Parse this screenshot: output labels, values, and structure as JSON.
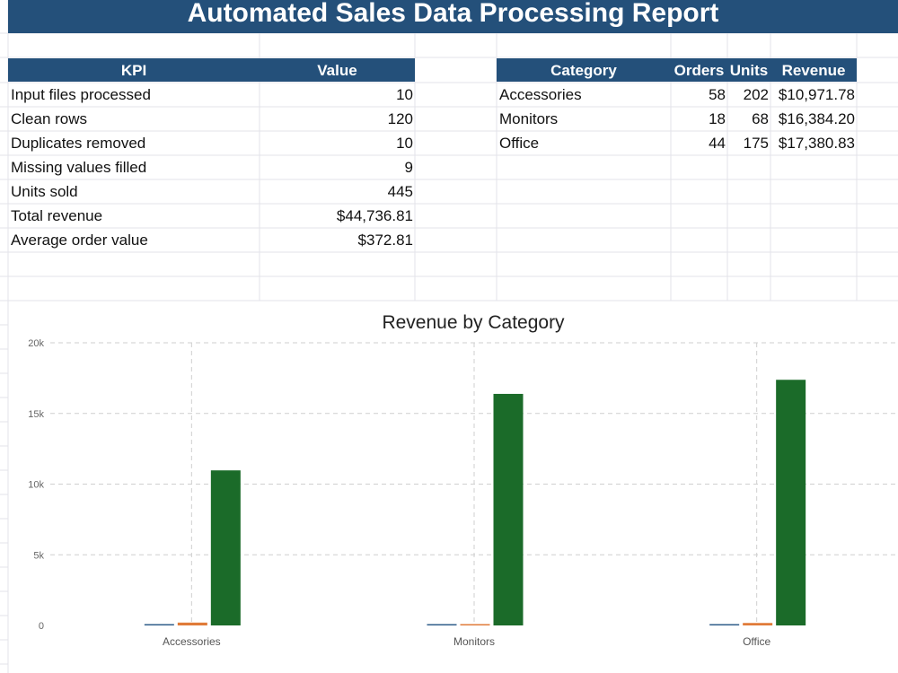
{
  "report_title": "Automated Sales Data Processing Report",
  "kpi_table": {
    "headers": [
      "KPI",
      "Value"
    ],
    "rows": [
      [
        "Input files processed",
        "10"
      ],
      [
        "Clean rows",
        "120"
      ],
      [
        "Duplicates removed",
        "10"
      ],
      [
        "Missing values filled",
        "9"
      ],
      [
        "Units sold",
        "445"
      ],
      [
        "Total revenue",
        "$44,736.81"
      ],
      [
        "Average order value",
        "$372.81"
      ]
    ]
  },
  "category_table": {
    "headers": [
      "Category",
      "Orders",
      "Units",
      "Revenue"
    ],
    "rows": [
      [
        "Accessories",
        "58",
        "202",
        "$10,971.78"
      ],
      [
        "Monitors",
        "18",
        "68",
        "$16,384.20"
      ],
      [
        "Office",
        "44",
        "175",
        "$17,380.83"
      ]
    ]
  },
  "colors": {
    "header_bg": "#24507a",
    "series_orders": "#2f5d8a",
    "series_units": "#e07b39",
    "series_revenue": "#1b6b29"
  },
  "chart_data": {
    "type": "bar",
    "title": "Revenue by Category",
    "categories": [
      "Accessories",
      "Monitors",
      "Office"
    ],
    "series": [
      {
        "values": [
          58,
          18,
          44
        ]
      },
      {
        "values": [
          202,
          68,
          175
        ]
      },
      {
        "values": [
          10971.78,
          16384.2,
          17380.83
        ]
      }
    ],
    "y_ticks": [
      "0",
      "5k",
      "10k",
      "15k",
      "20k"
    ],
    "ylim": [
      0,
      20000
    ],
    "grid": true
  }
}
